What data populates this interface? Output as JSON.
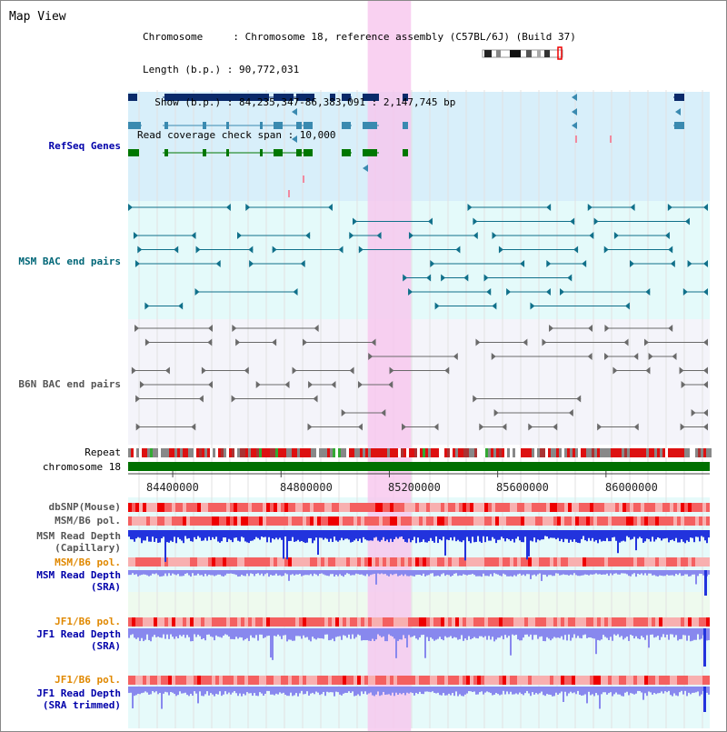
{
  "title": "Map View",
  "info": {
    "chromosome": "Chromosome     : Chromosome 18, reference assembly (C57BL/6J) (Build 37)",
    "length": "Length (b.p.) : 90,772,031",
    "show": "  Show (b.p.) : 84,235,347-86,383,091 : 2,147,745 bp",
    "coverage": "Read coverage check span : 10,000"
  },
  "tracks": {
    "refseq": "RefSeq Genes",
    "msm_bac": "MSM BAC end pairs",
    "b6n_bac": "B6N BAC end pairs",
    "repeat": "Repeat",
    "chromosome": "chromosome 18",
    "dbsnp": "dbSNP(Mouse)",
    "msm_b6_pol": "MSM/B6 pol.",
    "msm_depth_cap_1": "MSM Read Depth",
    "msm_depth_cap_2": "(Capillary)",
    "msm_b6_pol_2": "MSM/B6 pol.",
    "msm_depth_sra_1": "MSM Read Depth",
    "msm_depth_sra_2": "(SRA)",
    "jf1_b6_pol": "JF1/B6 pol.",
    "jf1_depth_sra_1": "JF1 Read Depth",
    "jf1_depth_sra_2": "(SRA)",
    "jf1_b6_pol_2": "JF1/B6 pol.",
    "jf1_depth_trim_1": "JF1 Read Depth",
    "jf1_depth_trim_2": "(SRA trimmed)"
  },
  "axis_ticks": [
    "84400000",
    "84800000",
    "85200000",
    "85600000",
    "86000000"
  ],
  "colors": {
    "refseq_label": "#0000aa",
    "msm_label": "#006677",
    "b6n_label": "#555555",
    "orange_label": "#e08800",
    "refseq_bg": "#d8effa",
    "msm_bg": "#e4fafa",
    "highlight": "#f7c6ee",
    "chrom_bar": "#007000",
    "depth_blue": "#2233dd",
    "depth_light": "#8888ee"
  },
  "highlight_region": [
    85120000,
    85280000
  ]
}
